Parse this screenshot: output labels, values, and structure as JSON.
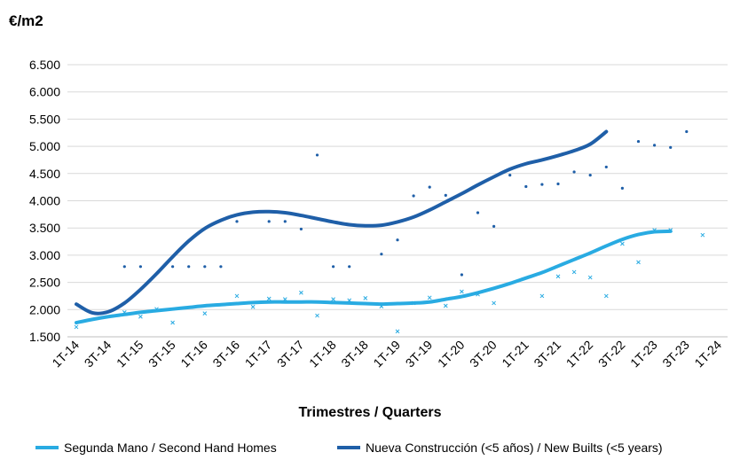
{
  "chart_data": {
    "type": "scatter",
    "ylabel": "€/m2",
    "xlabel": "Trimestres / Quarters",
    "ylim": [
      1500,
      6500
    ],
    "yticks": [
      1500,
      2000,
      2500,
      3000,
      3500,
      4000,
      4500,
      5000,
      5500,
      6000,
      6500
    ],
    "ytick_labels": [
      "1.500",
      "2.000",
      "2.500",
      "3.000",
      "3.500",
      "4.000",
      "4.500",
      "5.000",
      "5.500",
      "6.000",
      "6.500"
    ],
    "categories": [
      "1T-14",
      "2T-14",
      "3T-14",
      "4T-14",
      "1T-15",
      "2T-15",
      "3T-15",
      "4T-15",
      "1T-16",
      "2T-16",
      "3T-16",
      "4T-16",
      "1T-17",
      "2T-17",
      "3T-17",
      "4T-17",
      "1T-18",
      "2T-18",
      "3T-18",
      "4T-18",
      "1T-19",
      "2T-19",
      "3T-19",
      "4T-19",
      "1T-20",
      "2T-20",
      "3T-20",
      "4T-20",
      "1T-21",
      "2T-21",
      "3T-21",
      "4T-21",
      "1T-22",
      "2T-22",
      "3T-22",
      "4T-22",
      "1T-23",
      "2T-23",
      "3T-23",
      "4T-23",
      "1T-24"
    ],
    "tick_labels": [
      "1T-14",
      "3T-14",
      "1T-15",
      "3T-15",
      "1T-16",
      "3T-16",
      "1T-17",
      "3T-17",
      "1T-18",
      "3T-18",
      "1T-19",
      "3T-19",
      "1T-20",
      "3T-20",
      "1T-21",
      "3T-21",
      "1T-22",
      "3T-22",
      "1T-23",
      "3T-23",
      "1T-24"
    ],
    "grid": true,
    "legend_position": "bottom",
    "series": [
      {
        "name": "Segunda Mano / Second Hand Homes",
        "color": "#29abe2",
        "marker": "x",
        "points": [
          1680,
          null,
          null,
          1950,
          1870,
          2010,
          1760,
          null,
          1930,
          null,
          2250,
          2050,
          2200,
          2190,
          2310,
          1890,
          2190,
          2170,
          2210,
          2060,
          1600,
          2120,
          2220,
          2070,
          2330,
          2280,
          2120,
          null,
          null,
          2250,
          2610,
          2690,
          2590,
          2250,
          3210,
          2870,
          3460,
          3460,
          null,
          3370,
          null
        ],
        "trend": [
          1760,
          1820,
          1870,
          1910,
          1950,
          1980,
          2010,
          2040,
          2070,
          2090,
          2110,
          2130,
          2140,
          2140,
          2140,
          2140,
          2130,
          2120,
          2110,
          2100,
          2110,
          2120,
          2140,
          2190,
          2240,
          2310,
          2390,
          2480,
          2580,
          2680,
          2800,
          2920,
          3040,
          3170,
          3290,
          3380,
          3430,
          3440,
          null,
          null,
          null
        ]
      },
      {
        "name": "Nueva Construcción (<5 años) / New Builts (<5 years)",
        "color": "#1f5fa8",
        "marker": "dot",
        "points": [
          null,
          null,
          null,
          2790,
          2790,
          null,
          2790,
          2790,
          2790,
          2790,
          3620,
          null,
          3620,
          3620,
          3480,
          4840,
          2790,
          2790,
          3540,
          3020,
          3280,
          4090,
          4250,
          4100,
          2640,
          3780,
          3530,
          4470,
          4260,
          4300,
          4310,
          4530,
          4470,
          4620,
          4230,
          5090,
          5020,
          4980,
          5270,
          null,
          null
        ],
        "trend": [
          2100,
          1940,
          1960,
          2120,
          2370,
          2660,
          2970,
          3260,
          3490,
          3640,
          3740,
          3790,
          3800,
          3780,
          3730,
          3670,
          3610,
          3560,
          3540,
          3550,
          3610,
          3700,
          3830,
          3980,
          4130,
          4290,
          4440,
          4580,
          4680,
          4750,
          4830,
          4920,
          5040,
          5270,
          null,
          null,
          null,
          null,
          null,
          null,
          null
        ]
      }
    ]
  }
}
